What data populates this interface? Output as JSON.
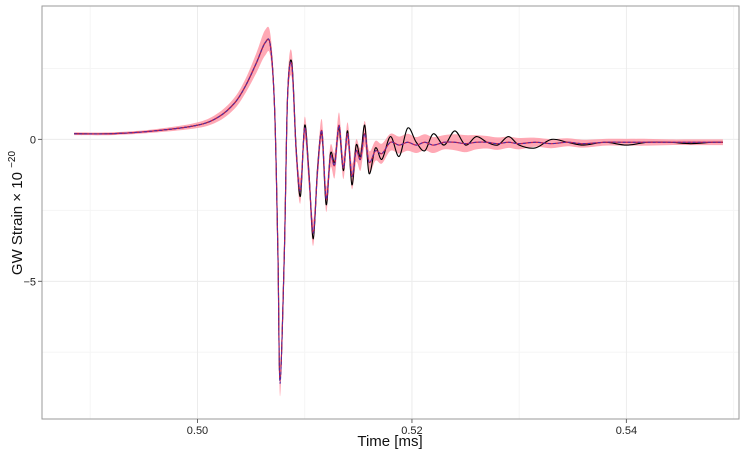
{
  "chart_data": {
    "type": "line",
    "title": "",
    "xlabel": "Time [ms]",
    "ylabel_main": "GW Strain",
    "ylabel_times": "×",
    "ylabel_base": "10",
    "ylabel_exp": "−20",
    "xlim": [
      0.4855,
      0.5505
    ],
    "ylim": [
      -9.85,
      4.7
    ],
    "x_ticks": [
      0.5,
      0.52,
      0.54
    ],
    "x_tick_labels": [
      "0.50",
      "0.52",
      "0.54"
    ],
    "y_ticks": [
      0,
      -5
    ],
    "y_tick_labels": [
      "0",
      "−5"
    ],
    "grid": true,
    "colors": {
      "band": "#ff9aa8",
      "data_line": "#000000",
      "median_line": "#c81d4a",
      "true_line": "#4a2fa8",
      "grid": "#ececec",
      "panel_border": "#9a9a9a"
    },
    "series": [
      {
        "role": "observed",
        "x": [
          0.4885,
          0.492,
          0.496,
          0.5,
          0.502,
          0.5035,
          0.5045,
          0.5055,
          0.5063,
          0.5068,
          0.5072,
          0.5075,
          0.5077,
          0.5081,
          0.5084,
          0.5088,
          0.5092,
          0.5096,
          0.51,
          0.5104,
          0.5108,
          0.5112,
          0.5116,
          0.512,
          0.5124,
          0.5128,
          0.5132,
          0.5136,
          0.514,
          0.5144,
          0.5148,
          0.5152,
          0.5156,
          0.516,
          0.5166,
          0.5172,
          0.518,
          0.5188,
          0.5196,
          0.5204,
          0.5212,
          0.522,
          0.523,
          0.524,
          0.525,
          0.526,
          0.527,
          0.528,
          0.529,
          0.53,
          0.5315,
          0.533,
          0.5345,
          0.536,
          0.538,
          0.54,
          0.542,
          0.544,
          0.546,
          0.548,
          0.549
        ],
        "y": [
          0.2,
          0.2,
          0.3,
          0.5,
          0.8,
          1.3,
          1.9,
          2.7,
          3.4,
          3.3,
          1.0,
          -4.0,
          -8.5,
          -4.0,
          1.5,
          2.7,
          -0.3,
          -2.0,
          0.5,
          -1.2,
          -3.5,
          -1.0,
          0.2,
          -2.3,
          -0.5,
          -0.8,
          0.4,
          -1.1,
          0.3,
          -1.6,
          -0.2,
          -0.6,
          0.5,
          -1.2,
          -0.3,
          -0.7,
          0.1,
          -0.6,
          0.4,
          -0.1,
          -0.4,
          0.2,
          -0.2,
          0.3,
          -0.2,
          0.1,
          -0.1,
          -0.2,
          0.1,
          -0.2,
          -0.3,
          0.0,
          -0.1,
          -0.2,
          -0.1,
          -0.2,
          -0.1,
          -0.1,
          -0.15,
          -0.1,
          -0.1
        ]
      },
      {
        "role": "median",
        "x": [
          0.4885,
          0.492,
          0.496,
          0.5,
          0.502,
          0.5035,
          0.5045,
          0.5055,
          0.5063,
          0.5068,
          0.5072,
          0.5075,
          0.5077,
          0.5081,
          0.5084,
          0.5088,
          0.5092,
          0.5096,
          0.51,
          0.5104,
          0.5108,
          0.5112,
          0.5116,
          0.512,
          0.5124,
          0.5128,
          0.5132,
          0.5136,
          0.514,
          0.5144,
          0.5148,
          0.5152,
          0.5156,
          0.516,
          0.5166,
          0.5172,
          0.518,
          0.5188,
          0.5196,
          0.5204,
          0.5212,
          0.522,
          0.523,
          0.524,
          0.525,
          0.526,
          0.527,
          0.528,
          0.529,
          0.53,
          0.5315,
          0.533,
          0.5345,
          0.536,
          0.538,
          0.54,
          0.542,
          0.544,
          0.546,
          0.548,
          0.549
        ],
        "y": [
          0.2,
          0.2,
          0.3,
          0.5,
          0.8,
          1.3,
          1.9,
          2.7,
          3.4,
          3.3,
          1.0,
          -4.0,
          -8.5,
          -4.0,
          1.5,
          2.6,
          -0.4,
          -1.8,
          0.4,
          -1.3,
          -3.3,
          -1.1,
          0.3,
          -2.1,
          -0.6,
          -0.9,
          0.5,
          -1.0,
          0.2,
          -1.3,
          -0.4,
          -0.7,
          0.2,
          -0.8,
          -0.4,
          -0.5,
          -0.1,
          -0.2,
          -0.1,
          -0.2,
          -0.1,
          -0.2,
          -0.1,
          -0.1,
          -0.15,
          -0.1,
          -0.1,
          -0.15,
          -0.1,
          -0.15,
          -0.1,
          -0.15,
          -0.1,
          -0.15,
          -0.1,
          -0.1,
          -0.1,
          -0.1,
          -0.1,
          -0.1,
          -0.1
        ]
      },
      {
        "role": "injected",
        "x": [
          0.4885,
          0.492,
          0.496,
          0.5,
          0.502,
          0.5035,
          0.5045,
          0.5055,
          0.5063,
          0.5068,
          0.5072,
          0.5075,
          0.5077,
          0.5081,
          0.5084,
          0.5088,
          0.5092,
          0.5096,
          0.51,
          0.5104,
          0.5108,
          0.5112,
          0.5116,
          0.512,
          0.5124,
          0.5128,
          0.5132,
          0.5136,
          0.514,
          0.5144,
          0.5148,
          0.5152,
          0.5156,
          0.516,
          0.5166,
          0.5172,
          0.518,
          0.5188,
          0.5196,
          0.5204,
          0.5212,
          0.522,
          0.523,
          0.524,
          0.525,
          0.526,
          0.527,
          0.528,
          0.529,
          0.53,
          0.5315,
          0.533,
          0.5345,
          0.536,
          0.538,
          0.54,
          0.542,
          0.544,
          0.546,
          0.548,
          0.549
        ],
        "y": [
          0.2,
          0.2,
          0.3,
          0.5,
          0.8,
          1.3,
          1.9,
          2.7,
          3.4,
          3.3,
          1.0,
          -4.0,
          -8.6,
          -4.0,
          1.5,
          2.6,
          -0.4,
          -1.8,
          0.4,
          -1.3,
          -3.3,
          -1.1,
          0.3,
          -2.1,
          -0.6,
          -0.9,
          0.5,
          -1.0,
          0.2,
          -1.3,
          -0.4,
          -0.7,
          0.2,
          -0.8,
          -0.4,
          -0.5,
          -0.1,
          -0.2,
          -0.1,
          -0.2,
          -0.1,
          -0.2,
          -0.1,
          -0.1,
          -0.15,
          -0.1,
          -0.1,
          -0.15,
          -0.1,
          -0.15,
          -0.1,
          -0.15,
          -0.1,
          -0.15,
          -0.1,
          -0.1,
          -0.1,
          -0.1,
          -0.1,
          -0.1,
          -0.1
        ]
      }
    ],
    "credible_band": {
      "x": [
        0.4885,
        0.492,
        0.496,
        0.5,
        0.502,
        0.5035,
        0.5045,
        0.5055,
        0.5063,
        0.5068,
        0.5072,
        0.5075,
        0.5077,
        0.5081,
        0.5084,
        0.5088,
        0.5092,
        0.5096,
        0.51,
        0.5104,
        0.5108,
        0.5112,
        0.5116,
        0.512,
        0.5124,
        0.5128,
        0.5132,
        0.5136,
        0.514,
        0.5144,
        0.5148,
        0.5152,
        0.5156,
        0.516,
        0.5166,
        0.5172,
        0.518,
        0.5188,
        0.5196,
        0.5204,
        0.5212,
        0.522,
        0.523,
        0.524,
        0.525,
        0.526,
        0.527,
        0.528,
        0.529,
        0.53,
        0.5315,
        0.533,
        0.5345,
        0.536,
        0.538,
        0.54,
        0.542,
        0.544,
        0.546,
        0.548,
        0.549
      ],
      "halfwidth": [
        0.05,
        0.05,
        0.06,
        0.1,
        0.15,
        0.2,
        0.25,
        0.35,
        0.45,
        0.4,
        0.4,
        0.5,
        0.55,
        0.45,
        0.45,
        0.45,
        0.4,
        0.45,
        0.4,
        0.45,
        0.45,
        0.4,
        0.4,
        0.45,
        0.4,
        0.45,
        0.45,
        0.4,
        0.4,
        0.45,
        0.4,
        0.4,
        0.45,
        0.4,
        0.35,
        0.35,
        0.3,
        0.3,
        0.3,
        0.28,
        0.28,
        0.28,
        0.25,
        0.28,
        0.3,
        0.25,
        0.22,
        0.22,
        0.2,
        0.2,
        0.16,
        0.16,
        0.14,
        0.14,
        0.12,
        0.12,
        0.12,
        0.1,
        0.1,
        0.1,
        0.1
      ]
    }
  }
}
